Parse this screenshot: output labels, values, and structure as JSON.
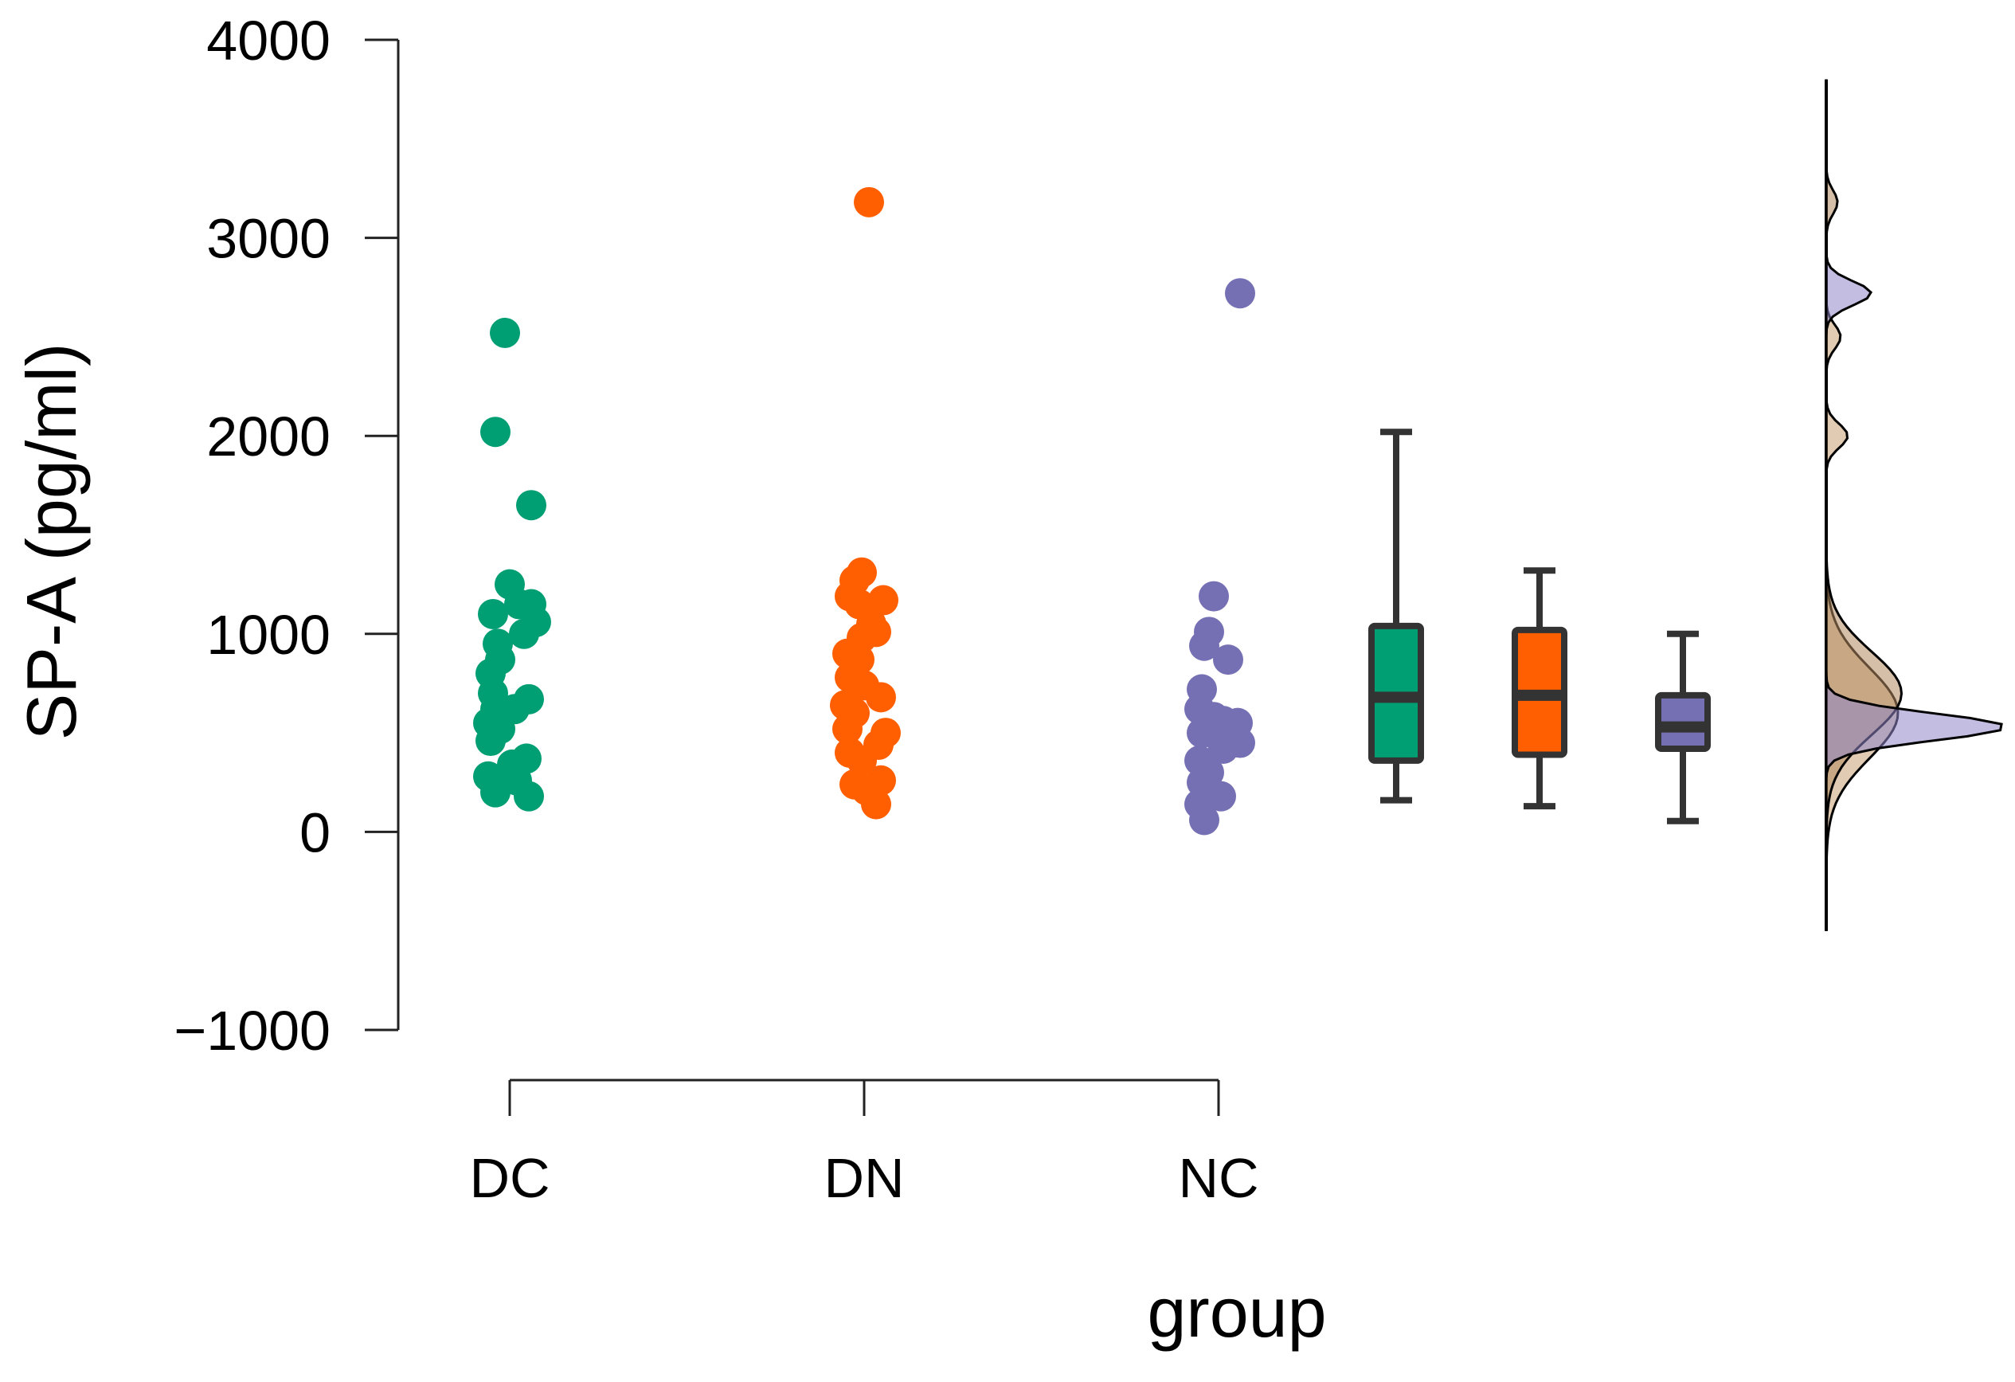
{
  "chart_data": {
    "type": "scatter",
    "subtype": "raincloud",
    "title": "",
    "xlabel": "group",
    "ylabel": "SP-A (pg/ml)",
    "ylim": [
      -1000,
      4000
    ],
    "yticks": [
      -1000,
      0,
      1000,
      2000,
      3000,
      4000
    ],
    "ytick_labels": [
      "−1000",
      "0",
      "1000",
      "2000",
      "3000",
      "4000"
    ],
    "categories": [
      "DC",
      "DN",
      "NC"
    ],
    "grid": false,
    "series": [
      {
        "name": "DC",
        "color": "#009E73",
        "points": [
          {
            "jitter": -0.1,
            "value": 2520
          },
          {
            "jitter": -0.3,
            "value": 2020
          },
          {
            "jitter": 0.45,
            "value": 1650
          },
          {
            "jitter": 0.0,
            "value": 1250
          },
          {
            "jitter": -0.35,
            "value": 1100
          },
          {
            "jitter": 0.45,
            "value": 1150
          },
          {
            "jitter": 0.2,
            "value": 1150
          },
          {
            "jitter": 0.55,
            "value": 1060
          },
          {
            "jitter": 0.3,
            "value": 1000
          },
          {
            "jitter": -0.25,
            "value": 950
          },
          {
            "jitter": -0.2,
            "value": 870
          },
          {
            "jitter": -0.4,
            "value": 800
          },
          {
            "jitter": -0.35,
            "value": 700
          },
          {
            "jitter": 0.4,
            "value": 670
          },
          {
            "jitter": -0.3,
            "value": 620
          },
          {
            "jitter": 0.1,
            "value": 620
          },
          {
            "jitter": -0.45,
            "value": 550
          },
          {
            "jitter": -0.2,
            "value": 520
          },
          {
            "jitter": -0.4,
            "value": 460
          },
          {
            "jitter": 0.35,
            "value": 370
          },
          {
            "jitter": 0.05,
            "value": 340
          },
          {
            "jitter": -0.45,
            "value": 280
          },
          {
            "jitter": 0.15,
            "value": 260
          },
          {
            "jitter": -0.3,
            "value": 200
          },
          {
            "jitter": 0.4,
            "value": 180
          }
        ],
        "box": {
          "min": 160,
          "q1": 360,
          "median": 680,
          "q3": 1040,
          "max": 2020
        }
      },
      {
        "name": "DN",
        "color": "#FF5F00",
        "points": [
          {
            "jitter": 0.1,
            "value": 3180
          },
          {
            "jitter": -0.05,
            "value": 1310
          },
          {
            "jitter": -0.2,
            "value": 1270
          },
          {
            "jitter": -0.3,
            "value": 1190
          },
          {
            "jitter": 0.4,
            "value": 1170
          },
          {
            "jitter": -0.1,
            "value": 1150
          },
          {
            "jitter": 0.15,
            "value": 1050
          },
          {
            "jitter": 0.25,
            "value": 1010
          },
          {
            "jitter": -0.05,
            "value": 980
          },
          {
            "jitter": -0.35,
            "value": 900
          },
          {
            "jitter": -0.1,
            "value": 870
          },
          {
            "jitter": -0.3,
            "value": 780
          },
          {
            "jitter": 0.0,
            "value": 740
          },
          {
            "jitter": 0.35,
            "value": 680
          },
          {
            "jitter": -0.4,
            "value": 640
          },
          {
            "jitter": -0.2,
            "value": 600
          },
          {
            "jitter": -0.35,
            "value": 520
          },
          {
            "jitter": 0.45,
            "value": 500
          },
          {
            "jitter": 0.3,
            "value": 440
          },
          {
            "jitter": -0.3,
            "value": 400
          },
          {
            "jitter": -0.05,
            "value": 360
          },
          {
            "jitter": 0.35,
            "value": 260
          },
          {
            "jitter": -0.2,
            "value": 240
          },
          {
            "jitter": 0.05,
            "value": 210
          },
          {
            "jitter": 0.25,
            "value": 140
          }
        ],
        "box": {
          "min": 130,
          "q1": 390,
          "median": 690,
          "q3": 1020,
          "max": 1320
        }
      },
      {
        "name": "NC",
        "color": "#7570B3",
        "points": [
          {
            "jitter": 0.45,
            "value": 2720
          },
          {
            "jitter": -0.1,
            "value": 1190
          },
          {
            "jitter": -0.2,
            "value": 1010
          },
          {
            "jitter": -0.3,
            "value": 940
          },
          {
            "jitter": 0.2,
            "value": 870
          },
          {
            "jitter": -0.35,
            "value": 720
          },
          {
            "jitter": -0.4,
            "value": 620
          },
          {
            "jitter": -0.1,
            "value": 580
          },
          {
            "jitter": 0.1,
            "value": 560
          },
          {
            "jitter": 0.4,
            "value": 550
          },
          {
            "jitter": -0.35,
            "value": 500
          },
          {
            "jitter": 0.0,
            "value": 480
          },
          {
            "jitter": 0.45,
            "value": 450
          },
          {
            "jitter": 0.1,
            "value": 420
          },
          {
            "jitter": -0.4,
            "value": 360
          },
          {
            "jitter": -0.2,
            "value": 300
          },
          {
            "jitter": -0.35,
            "value": 250
          },
          {
            "jitter": 0.05,
            "value": 180
          },
          {
            "jitter": -0.4,
            "value": 140
          },
          {
            "jitter": -0.3,
            "value": 60
          }
        ],
        "box": {
          "min": 55,
          "q1": 420,
          "median": 530,
          "q3": 690,
          "max": 1000
        }
      }
    ],
    "density": {
      "value_range": [
        -500,
        3800
      ],
      "curves": [
        {
          "name": "DC",
          "color": "#009E73",
          "fill": "#c9a073",
          "peak_value": 600,
          "peak_width_value": 500,
          "secondary": [
            {
              "value": 2000,
              "weight": 0.06
            },
            {
              "value": 2500,
              "weight": 0.04
            }
          ],
          "max_relative_height": 0.4
        },
        {
          "name": "DN",
          "color": "#FF5F00",
          "fill": "#b58a60",
          "peak_value": 700,
          "peak_width_value": 460,
          "secondary": [
            {
              "value": 3180,
              "weight": 0.03
            }
          ],
          "max_relative_height": 0.42
        },
        {
          "name": "NC",
          "color": "#7570B3",
          "fill": "#8f86c8",
          "peak_value": 530,
          "peak_width_value": 150,
          "secondary": [
            {
              "value": 2720,
              "weight": 0.05
            }
          ],
          "max_relative_height": 1.0
        }
      ]
    }
  }
}
